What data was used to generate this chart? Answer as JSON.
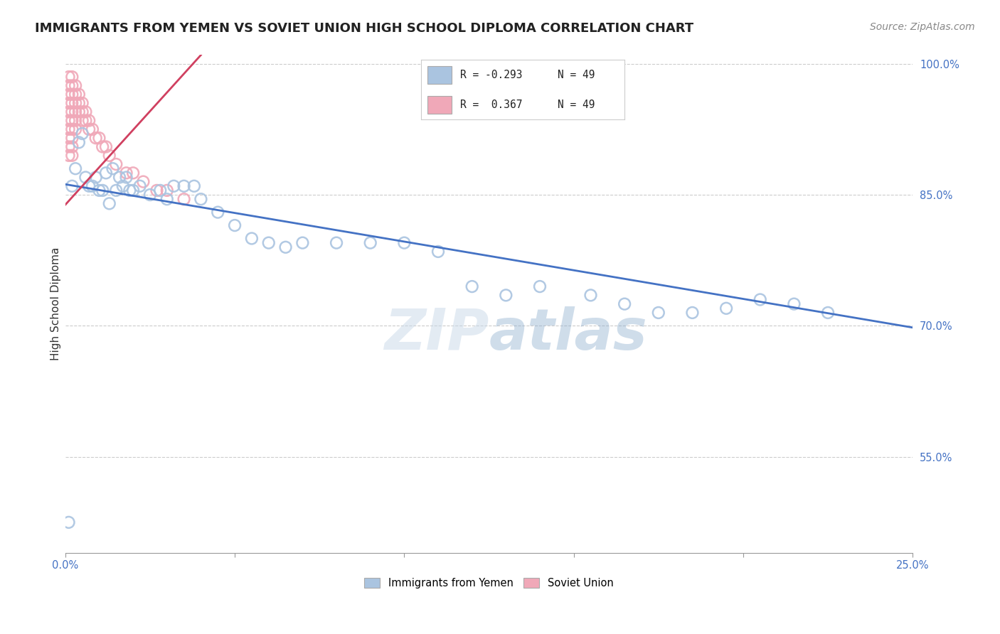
{
  "title": "IMMIGRANTS FROM YEMEN VS SOVIET UNION HIGH SCHOOL DIPLOMA CORRELATION CHART",
  "source": "Source: ZipAtlas.com",
  "ylabel": "High School Diploma",
  "xlim": [
    0.0,
    0.25
  ],
  "ylim": [
    0.44,
    1.01
  ],
  "yticks": [
    0.55,
    0.7,
    0.85,
    1.0
  ],
  "ytick_labels": [
    "55.0%",
    "70.0%",
    "85.0%",
    "100.0%"
  ],
  "xtick_positions": [
    0.0,
    0.05,
    0.1,
    0.15,
    0.2,
    0.25
  ],
  "xtick_labels": [
    "0.0%",
    "",
    "",
    "",
    "",
    "25.0%"
  ],
  "legend_blue_r": "R = -0.293",
  "legend_blue_n": "N = 49",
  "legend_pink_r": "R =  0.367",
  "legend_pink_n": "N = 49",
  "legend_label_blue": "Immigrants from Yemen",
  "legend_label_pink": "Soviet Union",
  "blue_color": "#aac4e0",
  "pink_color": "#f0a8b8",
  "blue_line_color": "#4472c4",
  "pink_line_color": "#d04060",
  "watermark": "ZIPatlas",
  "blue_scatter_x": [
    0.001,
    0.002,
    0.003,
    0.004,
    0.005,
    0.006,
    0.007,
    0.008,
    0.009,
    0.01,
    0.011,
    0.012,
    0.013,
    0.014,
    0.015,
    0.016,
    0.017,
    0.018,
    0.019,
    0.02,
    0.022,
    0.025,
    0.028,
    0.03,
    0.032,
    0.035,
    0.038,
    0.04,
    0.045,
    0.05,
    0.055,
    0.06,
    0.065,
    0.07,
    0.08,
    0.09,
    0.1,
    0.11,
    0.12,
    0.13,
    0.14,
    0.155,
    0.165,
    0.175,
    0.185,
    0.195,
    0.205,
    0.215,
    0.225
  ],
  "blue_scatter_y": [
    0.475,
    0.86,
    0.88,
    0.91,
    0.92,
    0.87,
    0.86,
    0.86,
    0.87,
    0.855,
    0.855,
    0.875,
    0.84,
    0.88,
    0.855,
    0.87,
    0.86,
    0.87,
    0.855,
    0.855,
    0.86,
    0.85,
    0.855,
    0.845,
    0.86,
    0.86,
    0.86,
    0.845,
    0.83,
    0.815,
    0.8,
    0.795,
    0.79,
    0.795,
    0.795,
    0.795,
    0.795,
    0.785,
    0.745,
    0.735,
    0.745,
    0.735,
    0.725,
    0.715,
    0.715,
    0.72,
    0.73,
    0.725,
    0.715
  ],
  "pink_scatter_x": [
    0.001,
    0.001,
    0.001,
    0.001,
    0.001,
    0.001,
    0.001,
    0.001,
    0.001,
    0.001,
    0.002,
    0.002,
    0.002,
    0.002,
    0.002,
    0.002,
    0.002,
    0.002,
    0.002,
    0.002,
    0.003,
    0.003,
    0.003,
    0.003,
    0.003,
    0.003,
    0.004,
    0.004,
    0.004,
    0.005,
    0.005,
    0.005,
    0.006,
    0.006,
    0.007,
    0.007,
    0.008,
    0.009,
    0.01,
    0.011,
    0.012,
    0.013,
    0.015,
    0.018,
    0.02,
    0.023,
    0.027,
    0.03,
    0.035
  ],
  "pink_scatter_y": [
    0.985,
    0.975,
    0.965,
    0.955,
    0.945,
    0.935,
    0.925,
    0.915,
    0.905,
    0.895,
    0.985,
    0.975,
    0.965,
    0.955,
    0.945,
    0.935,
    0.925,
    0.915,
    0.905,
    0.895,
    0.975,
    0.965,
    0.955,
    0.945,
    0.935,
    0.925,
    0.965,
    0.955,
    0.945,
    0.955,
    0.945,
    0.935,
    0.945,
    0.935,
    0.935,
    0.925,
    0.925,
    0.915,
    0.915,
    0.905,
    0.905,
    0.895,
    0.885,
    0.875,
    0.875,
    0.865,
    0.855,
    0.855,
    0.845
  ],
  "blue_trend_x": [
    0.0,
    0.25
  ],
  "blue_trend_y": [
    0.862,
    0.698
  ],
  "pink_trend_x": [
    -0.002,
    0.04
  ],
  "pink_trend_y": [
    0.83,
    1.01
  ],
  "background_color": "#ffffff",
  "grid_color": "#cccccc",
  "title_fontsize": 13,
  "axis_fontsize": 11,
  "tick_fontsize": 10.5,
  "source_fontsize": 10
}
